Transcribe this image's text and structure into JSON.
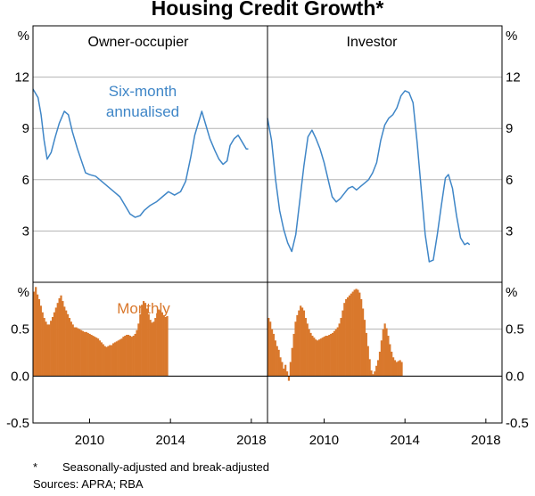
{
  "chart_data": {
    "type": "line",
    "title": "Housing Credit Growth*",
    "footnote_marker": "*",
    "footnote_text": "Seasonally-adjusted and break-adjusted",
    "sources": "Sources: APRA; RBA",
    "colors": {
      "line": "#3f86c7",
      "bar": "#d9782c",
      "grid": "#b3b3b3",
      "frame": "#000000"
    },
    "x_range": [
      2007.2,
      2018.8
    ],
    "x_ticks": [
      2010,
      2014,
      2018
    ],
    "x_tick_labels": [
      "2010",
      "2014",
      "2018"
    ],
    "unit_label": "%",
    "top_panel": {
      "ylim": [
        0,
        15
      ],
      "ticks": [
        3,
        6,
        9,
        12
      ],
      "tick_labels": [
        "3",
        "6",
        "9",
        "12"
      ],
      "annotation_line1": "Six-month",
      "annotation_line2": "annualised"
    },
    "bottom_panel": {
      "ylim": [
        -0.5,
        1.0
      ],
      "ticks": [
        -0.5,
        0.0,
        0.5
      ],
      "tick_labels": [
        "-0.5",
        "0.0",
        "0.5"
      ],
      "annotation": "Monthly"
    },
    "panels": [
      {
        "name": "Owner-occupier",
        "six_month": [
          [
            2007.2,
            11.3
          ],
          [
            2007.45,
            10.8
          ],
          [
            2007.6,
            9.8
          ],
          [
            2007.75,
            8.3
          ],
          [
            2007.9,
            7.2
          ],
          [
            2008.1,
            7.6
          ],
          [
            2008.3,
            8.5
          ],
          [
            2008.5,
            9.3
          ],
          [
            2008.75,
            10.0
          ],
          [
            2008.95,
            9.8
          ],
          [
            2009.15,
            8.8
          ],
          [
            2009.4,
            7.8
          ],
          [
            2009.6,
            7.1
          ],
          [
            2009.8,
            6.4
          ],
          [
            2010.0,
            6.3
          ],
          [
            2010.3,
            6.2
          ],
          [
            2010.6,
            5.9
          ],
          [
            2010.9,
            5.6
          ],
          [
            2011.2,
            5.3
          ],
          [
            2011.5,
            5.0
          ],
          [
            2011.8,
            4.4
          ],
          [
            2012.0,
            4.0
          ],
          [
            2012.25,
            3.8
          ],
          [
            2012.5,
            3.9
          ],
          [
            2012.7,
            4.2
          ],
          [
            2013.0,
            4.5
          ],
          [
            2013.3,
            4.7
          ],
          [
            2013.6,
            5.0
          ],
          [
            2013.9,
            5.3
          ],
          [
            2014.2,
            5.1
          ],
          [
            2014.5,
            5.3
          ],
          [
            2014.75,
            5.9
          ],
          [
            2015.0,
            7.3
          ],
          [
            2015.2,
            8.6
          ],
          [
            2015.4,
            9.4
          ],
          [
            2015.55,
            10.0
          ],
          [
            2015.75,
            9.2
          ],
          [
            2015.95,
            8.4
          ],
          [
            2016.2,
            7.7
          ],
          [
            2016.4,
            7.2
          ],
          [
            2016.6,
            6.9
          ],
          [
            2016.8,
            7.1
          ],
          [
            2016.95,
            8.0
          ],
          [
            2017.15,
            8.4
          ],
          [
            2017.35,
            8.6
          ],
          [
            2017.55,
            8.2
          ],
          [
            2017.75,
            7.8
          ],
          [
            2017.85,
            7.8
          ]
        ],
        "monthly_start": 2007.25,
        "monthly": [
          0.9,
          0.95,
          0.87,
          0.82,
          0.75,
          0.68,
          0.62,
          0.58,
          0.55,
          0.55,
          0.59,
          0.63,
          0.68,
          0.73,
          0.78,
          0.83,
          0.86,
          0.8,
          0.74,
          0.7,
          0.66,
          0.62,
          0.58,
          0.55,
          0.52,
          0.52,
          0.51,
          0.5,
          0.49,
          0.48,
          0.47,
          0.47,
          0.46,
          0.45,
          0.44,
          0.43,
          0.42,
          0.41,
          0.4,
          0.38,
          0.36,
          0.34,
          0.32,
          0.31,
          0.32,
          0.33,
          0.33,
          0.35,
          0.36,
          0.37,
          0.38,
          0.39,
          0.4,
          0.42,
          0.43,
          0.44,
          0.44,
          0.43,
          0.42,
          0.43,
          0.45,
          0.49,
          0.56,
          0.66,
          0.76,
          0.8,
          0.78,
          0.72,
          0.66,
          0.6,
          0.57,
          0.58,
          0.62,
          0.67,
          0.71,
          0.7,
          0.68,
          0.65,
          0.63,
          0.64
        ]
      },
      {
        "name": "Investor",
        "six_month": [
          [
            2007.2,
            9.6
          ],
          [
            2007.4,
            8.3
          ],
          [
            2007.6,
            6.0
          ],
          [
            2007.8,
            4.2
          ],
          [
            2008.0,
            3.1
          ],
          [
            2008.2,
            2.3
          ],
          [
            2008.4,
            1.8
          ],
          [
            2008.6,
            2.8
          ],
          [
            2008.8,
            4.8
          ],
          [
            2009.0,
            6.8
          ],
          [
            2009.2,
            8.5
          ],
          [
            2009.4,
            8.9
          ],
          [
            2009.6,
            8.4
          ],
          [
            2009.8,
            7.8
          ],
          [
            2010.0,
            7.0
          ],
          [
            2010.2,
            6.0
          ],
          [
            2010.4,
            5.0
          ],
          [
            2010.6,
            4.7
          ],
          [
            2010.8,
            4.9
          ],
          [
            2011.0,
            5.2
          ],
          [
            2011.2,
            5.5
          ],
          [
            2011.4,
            5.6
          ],
          [
            2011.6,
            5.4
          ],
          [
            2011.8,
            5.6
          ],
          [
            2012.0,
            5.8
          ],
          [
            2012.2,
            6.0
          ],
          [
            2012.4,
            6.4
          ],
          [
            2012.6,
            7.0
          ],
          [
            2012.8,
            8.3
          ],
          [
            2013.0,
            9.2
          ],
          [
            2013.2,
            9.6
          ],
          [
            2013.4,
            9.8
          ],
          [
            2013.6,
            10.2
          ],
          [
            2013.8,
            10.9
          ],
          [
            2014.0,
            11.2
          ],
          [
            2014.2,
            11.1
          ],
          [
            2014.4,
            10.5
          ],
          [
            2014.6,
            8.2
          ],
          [
            2014.8,
            5.5
          ],
          [
            2015.0,
            2.8
          ],
          [
            2015.2,
            1.2
          ],
          [
            2015.4,
            1.3
          ],
          [
            2015.6,
            2.8
          ],
          [
            2015.8,
            4.5
          ],
          [
            2016.0,
            6.1
          ],
          [
            2016.15,
            6.3
          ],
          [
            2016.35,
            5.5
          ],
          [
            2016.55,
            3.9
          ],
          [
            2016.75,
            2.6
          ],
          [
            2016.95,
            2.2
          ],
          [
            2017.1,
            2.3
          ],
          [
            2017.2,
            2.2
          ]
        ],
        "monthly_start": 2007.25,
        "monthly": [
          0.62,
          0.58,
          0.5,
          0.45,
          0.38,
          0.32,
          0.28,
          0.2,
          0.15,
          0.08,
          0.12,
          0.05,
          -0.05,
          0.15,
          0.3,
          0.45,
          0.58,
          0.65,
          0.7,
          0.75,
          0.73,
          0.7,
          0.62,
          0.56,
          0.5,
          0.46,
          0.43,
          0.41,
          0.39,
          0.38,
          0.39,
          0.4,
          0.41,
          0.42,
          0.43,
          0.43,
          0.44,
          0.45,
          0.46,
          0.48,
          0.5,
          0.52,
          0.56,
          0.62,
          0.7,
          0.78,
          0.82,
          0.84,
          0.86,
          0.88,
          0.9,
          0.92,
          0.93,
          0.92,
          0.89,
          0.82,
          0.72,
          0.6,
          0.46,
          0.32,
          0.18,
          0.06,
          0.02,
          0.05,
          0.11,
          0.17,
          0.26,
          0.38,
          0.5,
          0.56,
          0.51,
          0.43,
          0.34,
          0.26,
          0.2,
          0.17,
          0.15,
          0.16,
          0.17,
          0.15
        ]
      }
    ]
  }
}
